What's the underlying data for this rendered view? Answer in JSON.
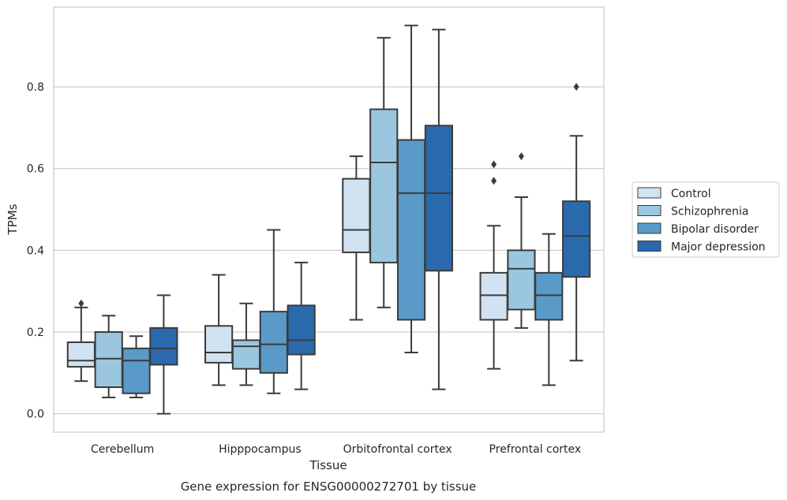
{
  "chart_data": {
    "type": "box",
    "caption": "Gene expression for ENSG00000272701 by tissue",
    "xlabel": "Tissue",
    "ylabel": "TPMs",
    "ylim": [
      -0.045,
      0.995
    ],
    "yticks": [
      0.0,
      0.2,
      0.4,
      0.6,
      0.8
    ],
    "ytick_labels": [
      "0.0",
      "0.2",
      "0.4",
      "0.6",
      "0.8"
    ],
    "grid": "horizontal",
    "legend_position": "right",
    "categories": [
      "Cerebellum",
      "Hipppocampus",
      "Orbitofrontal cortex",
      "Prefrontal cortex"
    ],
    "series": [
      {
        "name": "Control",
        "color": "#d1e2f2",
        "boxes": [
          {
            "whisker_low": 0.08,
            "q1": 0.115,
            "median": 0.13,
            "q3": 0.175,
            "whisker_high": 0.26,
            "outliers": [
              0.27
            ]
          },
          {
            "whisker_low": 0.07,
            "q1": 0.125,
            "median": 0.15,
            "q3": 0.215,
            "whisker_high": 0.34,
            "outliers": []
          },
          {
            "whisker_low": 0.23,
            "q1": 0.395,
            "median": 0.45,
            "q3": 0.575,
            "whisker_high": 0.63,
            "outliers": []
          },
          {
            "whisker_low": 0.11,
            "q1": 0.23,
            "median": 0.29,
            "q3": 0.345,
            "whisker_high": 0.46,
            "outliers": [
              0.57,
              0.61
            ]
          }
        ]
      },
      {
        "name": "Schizophrenia",
        "color": "#9ac7df",
        "boxes": [
          {
            "whisker_low": 0.04,
            "q1": 0.065,
            "median": 0.135,
            "q3": 0.2,
            "whisker_high": 0.24,
            "outliers": []
          },
          {
            "whisker_low": 0.07,
            "q1": 0.11,
            "median": 0.165,
            "q3": 0.18,
            "whisker_high": 0.27,
            "outliers": []
          },
          {
            "whisker_low": 0.26,
            "q1": 0.37,
            "median": 0.615,
            "q3": 0.745,
            "whisker_high": 0.92,
            "outliers": []
          },
          {
            "whisker_low": 0.21,
            "q1": 0.255,
            "median": 0.355,
            "q3": 0.4,
            "whisker_high": 0.53,
            "outliers": [
              0.63
            ]
          }
        ]
      },
      {
        "name": "Bipolar disorder",
        "color": "#5a9ac8",
        "boxes": [
          {
            "whisker_low": 0.04,
            "q1": 0.05,
            "median": 0.13,
            "q3": 0.16,
            "whisker_high": 0.19,
            "outliers": []
          },
          {
            "whisker_low": 0.05,
            "q1": 0.1,
            "median": 0.17,
            "q3": 0.25,
            "whisker_high": 0.45,
            "outliers": []
          },
          {
            "whisker_low": 0.15,
            "q1": 0.23,
            "median": 0.54,
            "q3": 0.67,
            "whisker_high": 0.95,
            "outliers": []
          },
          {
            "whisker_low": 0.07,
            "q1": 0.23,
            "median": 0.29,
            "q3": 0.345,
            "whisker_high": 0.44,
            "outliers": []
          }
        ]
      },
      {
        "name": "Major depression",
        "color": "#2a6aac",
        "boxes": [
          {
            "whisker_low": 0.0,
            "q1": 0.12,
            "median": 0.16,
            "q3": 0.21,
            "whisker_high": 0.29,
            "outliers": []
          },
          {
            "whisker_low": 0.06,
            "q1": 0.145,
            "median": 0.18,
            "q3": 0.265,
            "whisker_high": 0.37,
            "outliers": []
          },
          {
            "whisker_low": 0.06,
            "q1": 0.35,
            "median": 0.54,
            "q3": 0.705,
            "whisker_high": 0.94,
            "outliers": []
          },
          {
            "whisker_low": 0.13,
            "q1": 0.335,
            "median": 0.435,
            "q3": 0.52,
            "whisker_high": 0.68,
            "outliers": [
              0.8
            ]
          }
        ]
      }
    ]
  }
}
